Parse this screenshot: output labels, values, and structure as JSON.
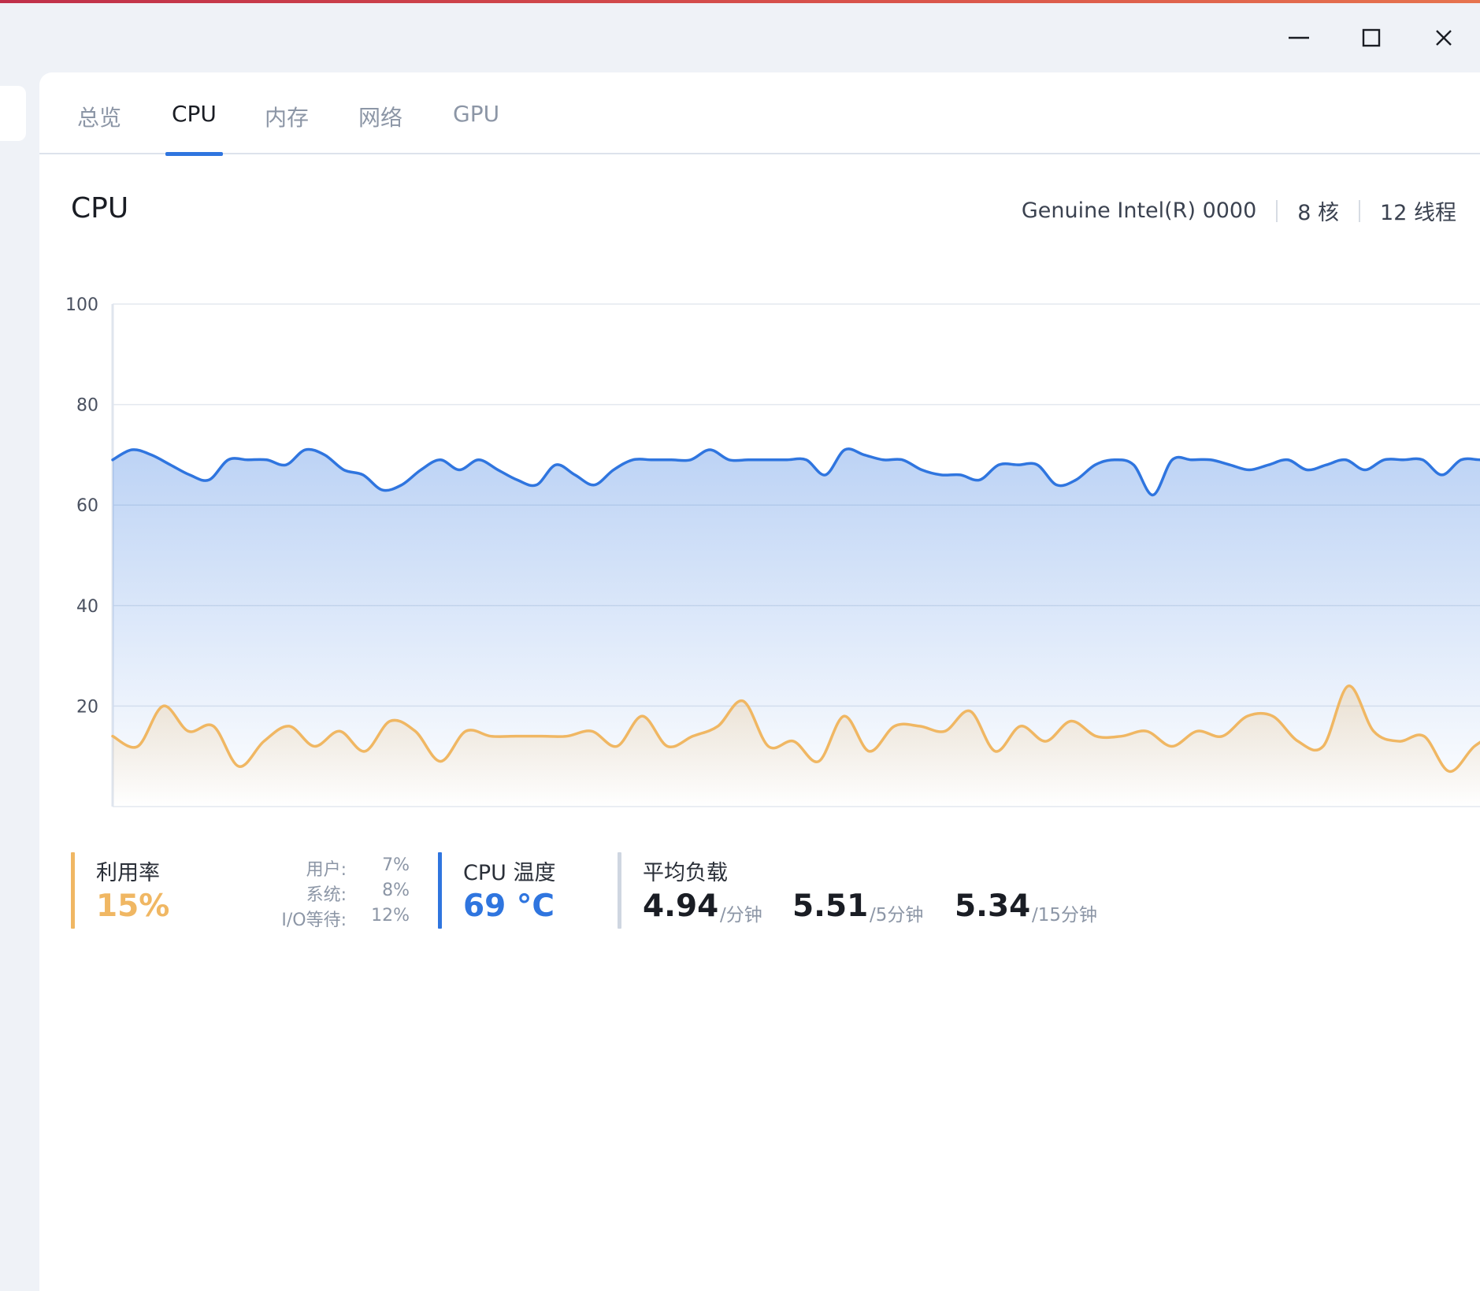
{
  "window": {
    "controls": [
      {
        "name": "minimize-button",
        "icon": "minimize-icon"
      },
      {
        "name": "maximize-button",
        "icon": "maximize-icon"
      },
      {
        "name": "close-button",
        "icon": "close-icon"
      }
    ]
  },
  "tabs": [
    {
      "label": "总览",
      "active": false
    },
    {
      "label": "CPU",
      "active": true
    },
    {
      "label": "内存",
      "active": false
    },
    {
      "label": "网络",
      "active": false
    },
    {
      "label": "GPU",
      "active": false
    }
  ],
  "header": {
    "title": "CPU",
    "model": "Genuine Intel(R) 0000",
    "cores": "8 核",
    "threads": "12 线程"
  },
  "chart_data": {
    "type": "area",
    "ylim": [
      0,
      100
    ],
    "yticks": [
      "100",
      "80",
      "60",
      "40",
      "20"
    ],
    "grid": true,
    "series": [
      {
        "color": "#2f75df",
        "values": [
          69,
          71,
          70,
          68,
          66,
          65,
          69,
          69,
          69,
          68,
          71,
          70,
          67,
          66,
          63,
          64,
          67,
          69,
          67,
          69,
          67,
          65,
          64,
          68,
          66,
          64,
          67,
          69,
          69,
          69,
          69,
          71,
          69,
          69,
          69,
          69,
          69,
          66,
          71,
          70,
          69,
          69,
          67,
          66,
          66,
          65,
          68,
          68,
          68,
          64,
          65,
          68,
          69,
          68,
          62,
          69,
          69,
          69,
          68,
          67,
          68,
          69,
          67,
          68,
          69,
          67,
          69,
          69,
          69,
          66,
          69,
          69,
          69
        ]
      },
      {
        "color": "#f0b763",
        "values": [
          14,
          12,
          20,
          15,
          16,
          8,
          13,
          16,
          12,
          15,
          11,
          17,
          15,
          9,
          15,
          14,
          14,
          14,
          14,
          15,
          12,
          18,
          12,
          14,
          16,
          21,
          12,
          13,
          9,
          18,
          11,
          16,
          16,
          15,
          19,
          11,
          16,
          13,
          17,
          14,
          14,
          15,
          12,
          15,
          14,
          18,
          18,
          13,
          12,
          24,
          15,
          13,
          14,
          7,
          12,
          15
        ]
      }
    ]
  },
  "stats": {
    "utilization": {
      "label": "利用率",
      "value": "15%",
      "color": "#f0b763",
      "user_label": "用户:",
      "user_value": "7%",
      "system_label": "系统:",
      "system_value": "8%",
      "iowait_label": "I/O等待:",
      "iowait_value": "12%"
    },
    "temperature": {
      "label": "CPU 温度",
      "value": "69 °C",
      "color": "#2f75df"
    },
    "load": {
      "label": "平均负载",
      "color": "#cfd6e1",
      "one": "4.94",
      "one_unit": "/分钟",
      "five": "5.51",
      "five_unit": "/5分钟",
      "fifteen": "5.34",
      "fifteen_unit": "/15分钟"
    }
  }
}
